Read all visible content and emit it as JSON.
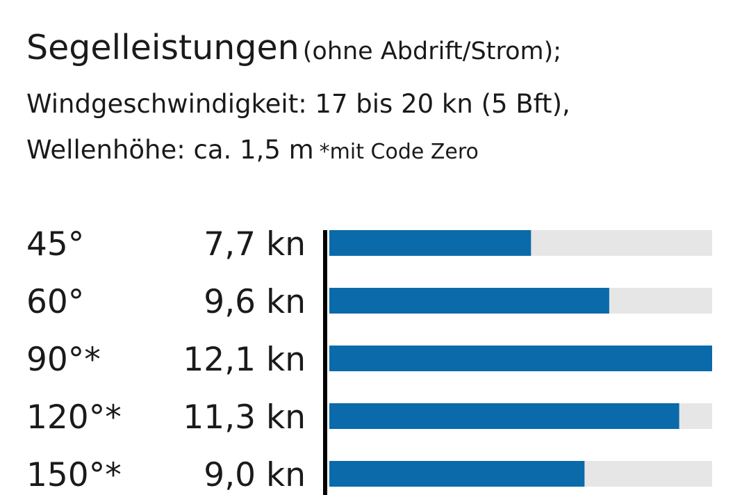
{
  "header": {
    "title_main": "Segelleistungen",
    "title_paren": "(ohne Abdrift/Strom);",
    "line2": "Windgeschwindigkeit: 17 bis 20 kn (5 Bft),",
    "line3": "Wellenhöhe: ca. 1,5 m",
    "footnote": "*mit Code Zero"
  },
  "colors": {
    "bar": "#0a6aaa",
    "track": "#e6e6e6",
    "axis": "#000000"
  },
  "chart_data": {
    "type": "bar",
    "orientation": "horizontal",
    "categories": [
      "45°",
      "60°",
      "90°*",
      "120°*",
      "150°*"
    ],
    "values": [
      7.7,
      9.6,
      12.1,
      11.3,
      9.0
    ],
    "value_labels": [
      "7,7 kn",
      "9,6 kn",
      "12,1 kn",
      "11,3 kn",
      "9,0 kn"
    ],
    "xlim": [
      2.8,
      12.1
    ],
    "grid": false,
    "legend": "none"
  }
}
